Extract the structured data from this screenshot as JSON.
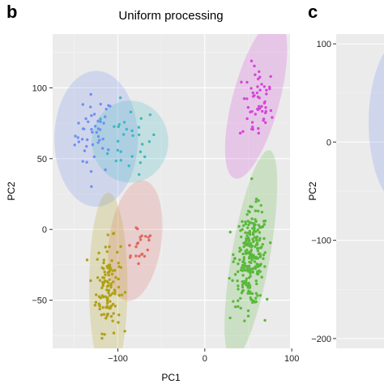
{
  "chart_data": [
    {
      "panel_letter": "b",
      "type": "scatter",
      "title": "Uniform processing",
      "xlabel": "PC1",
      "ylabel": "PC2",
      "xlim": [
        -175,
        98
      ],
      "ylim": [
        -84,
        138
      ],
      "x_ticks": [
        -100,
        0,
        100
      ],
      "x_tick_labels": [
        "−100",
        "0",
        "100"
      ],
      "y_ticks": [
        -50,
        0,
        50,
        100
      ],
      "y_tick_labels": [
        "−50",
        "0",
        "50",
        "100"
      ],
      "background": "#ebebeb",
      "grid": true,
      "clusters": [
        {
          "color": "#6f8ff2",
          "center": [
            -127,
            67
          ],
          "spread": [
            11,
            14
          ],
          "n": 45,
          "ellipse": {
            "cx": -125,
            "cy": 64,
            "rx": 48,
            "ry": 48,
            "angle": 0
          }
        },
        {
          "color": "#3db8c0",
          "center": [
            -87,
            63
          ],
          "spread": [
            16,
            12
          ],
          "n": 30,
          "ellipse": {
            "cx": -86,
            "cy": 62,
            "rx": 44,
            "ry": 29,
            "angle": 0
          }
        },
        {
          "color": "#d645d9",
          "center": [
            60,
            88
          ],
          "spread": [
            9,
            14
          ],
          "n": 55,
          "ellipse": {
            "cx": 59,
            "cy": 92,
            "rx": 27,
            "ry": 58,
            "angle": 15
          }
        },
        {
          "color": "#e06860",
          "center": [
            -76,
            -9
          ],
          "spread": [
            10,
            9
          ],
          "n": 22,
          "ellipse": {
            "cx": -80,
            "cy": -8,
            "rx": 30,
            "ry": 43,
            "angle": 8
          }
        },
        {
          "color": "#b0a016",
          "center": [
            -111,
            -40
          ],
          "spread": [
            7,
            16
          ],
          "n": 120,
          "ellipse": {
            "cx": -111,
            "cy": -40,
            "rx": 22,
            "ry": 66,
            "angle": 0
          }
        },
        {
          "color": "#5bb83c",
          "center": [
            53,
            -20
          ],
          "spread": [
            9,
            17
          ],
          "n": 260,
          "ellipse": {
            "cx": 53,
            "cy": -18,
            "rx": 22,
            "ry": 75,
            "angle": 10
          }
        }
      ]
    },
    {
      "panel_letter": "c",
      "type": "scatter",
      "ylabel": "PC2",
      "ylim": [
        -210,
        110
      ],
      "y_ticks": [
        -200,
        -100,
        0,
        100
      ],
      "y_tick_labels": [
        "−200",
        "−100",
        "0",
        "100"
      ],
      "background": "#ebebeb",
      "grid": true,
      "ellipse_color": "#6f8ff2"
    }
  ]
}
